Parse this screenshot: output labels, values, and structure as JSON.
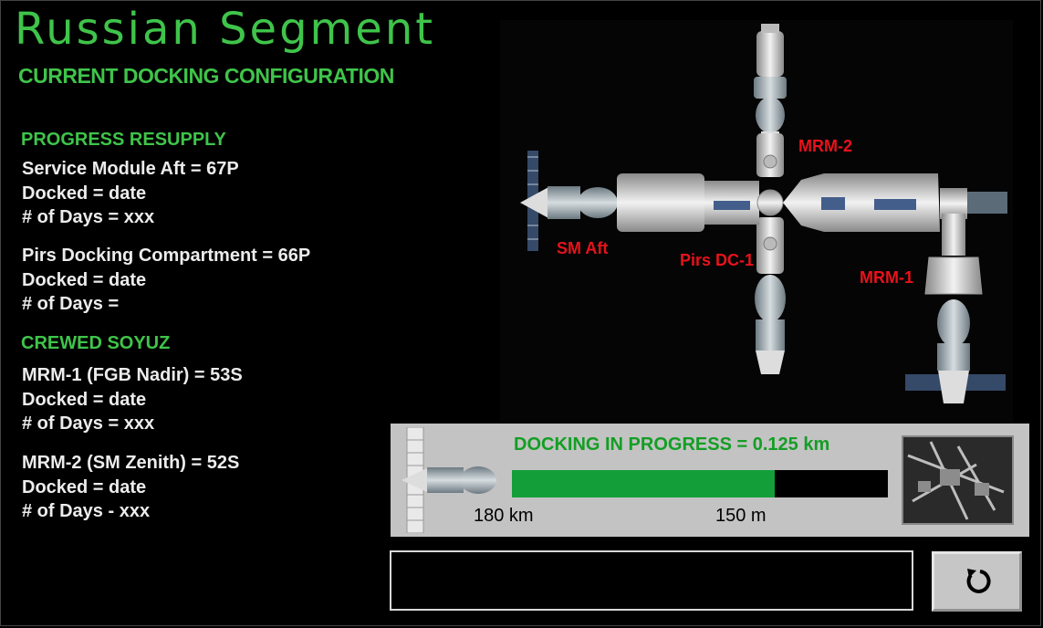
{
  "title": "Russian Segment",
  "subtitle": "CURRENT DOCKING CONFIGURATION",
  "progress": {
    "heading": "PROGRESS RESUPPLY",
    "entries": [
      {
        "port": "Service Module Aft = 67P",
        "docked": "Docked =  date",
        "days": "# of Days = xxx"
      },
      {
        "port": "Pirs Docking Compartment = 66P",
        "docked": "Docked = date",
        "days": "# of Days ="
      }
    ]
  },
  "soyuz": {
    "heading": "CREWED SOYUZ",
    "entries": [
      {
        "port": "MRM-1 (FGB Nadir) = 53S",
        "docked": "Docked = date",
        "days": "# of Days = xxx"
      },
      {
        "port": "MRM-2 (SM Zenith) = 52S",
        "docked": "Docked = date",
        "days": "# of Days - xxx"
      }
    ]
  },
  "diagram": {
    "labels": {
      "mrm2": "MRM-2",
      "sm_aft": "SM Aft",
      "pirs": "Pirs DC-1",
      "mrm1": "MRM-1"
    }
  },
  "docking": {
    "status": "DOCKING IN PROGRESS = 0.125 km",
    "progress_fraction": 0.7,
    "left_label": "180 km",
    "right_label": "150 m"
  },
  "colors": {
    "accent_green": "#3fc44a",
    "label_red": "#e8121b",
    "progress_green": "#139e3a",
    "flag": [
      "#ffffff",
      "#1f3fa8",
      "#e0171e"
    ]
  },
  "icons": {
    "reset": "refresh-icon",
    "flag": "russia-flag-icon"
  }
}
